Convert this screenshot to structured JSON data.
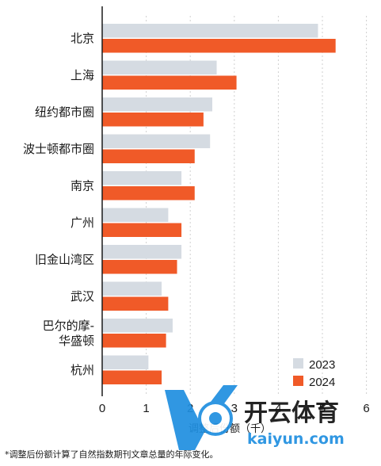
{
  "chart_data": {
    "type": "bar",
    "orientation": "horizontal",
    "categories": [
      "北京",
      "上海",
      "纽约都市圈",
      "波士顿都市圈",
      "南京",
      "广州",
      "旧金山湾区",
      "武汉",
      "巴尔的摩-华盛顿",
      "杭州"
    ],
    "category_lines": [
      [
        "北京"
      ],
      [
        "上海"
      ],
      [
        "纽约都市圈"
      ],
      [
        "波士顿都市圈"
      ],
      [
        "南京"
      ],
      [
        "广州"
      ],
      [
        "旧金山湾区"
      ],
      [
        "武汉"
      ],
      [
        "巴尔的摩-",
        "华盛顿"
      ],
      [
        "杭州"
      ]
    ],
    "series": [
      {
        "name": "2023",
        "color": "#d5dbe2",
        "values": [
          4.9,
          2.6,
          2.5,
          2.45,
          1.8,
          1.5,
          1.8,
          1.35,
          1.6,
          1.05
        ]
      },
      {
        "name": "2024",
        "color": "#f05a28",
        "values": [
          5.3,
          3.05,
          2.3,
          2.1,
          2.1,
          1.8,
          1.7,
          1.5,
          1.45,
          1.35
        ]
      }
    ],
    "x_ticks": [
      "0",
      "1",
      "2",
      "3",
      "4",
      "5",
      "6"
    ],
    "xlim": [
      0,
      6
    ],
    "xlabel": "调整后份额（千）",
    "grid": true,
    "legend_position": "bottom-right"
  },
  "footnote": "*调整后份额计算了自然指数期刊文章总量的年际变化。",
  "watermark": {
    "brand": "开云体育",
    "url": "kaiyun.com"
  }
}
